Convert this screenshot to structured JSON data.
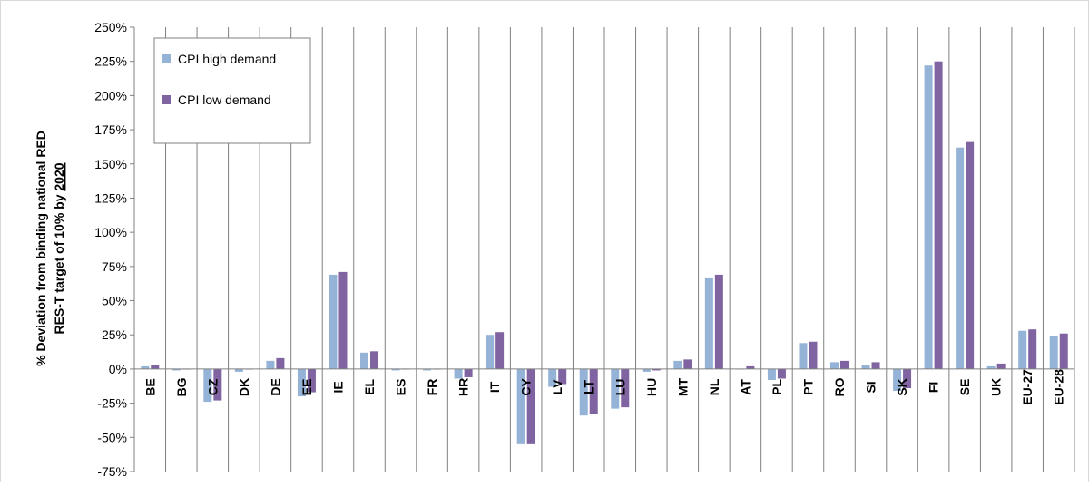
{
  "chart_data": {
    "type": "bar",
    "ylabel_line1": "% Deviation from binding national RED",
    "ylabel_line2_prefix": "RES-T target of 10% by ",
    "ylabel_line2_year": "2020",
    "ylim": [
      -75,
      250
    ],
    "yticks": [
      -75,
      -50,
      -25,
      0,
      25,
      50,
      75,
      100,
      125,
      150,
      175,
      200,
      225,
      250
    ],
    "ytick_labels": [
      "-75%",
      "-50%",
      "-25%",
      "0%",
      "25%",
      "50%",
      "75%",
      "100%",
      "125%",
      "150%",
      "175%",
      "200%",
      "225%",
      "250%"
    ],
    "grid": "vertical category separators",
    "legend_position": "top-left",
    "categories": [
      "BE",
      "BG",
      "CZ",
      "DK",
      "DE",
      "EE",
      "IE",
      "EL",
      "ES",
      "FR",
      "HR",
      "IT",
      "CY",
      "LV",
      "LT",
      "LU",
      "HU",
      "MT",
      "NL",
      "AT",
      "PL",
      "PT",
      "RO",
      "SI",
      "SK",
      "FI",
      "SE",
      "UK",
      "EU-27",
      "EU-28"
    ],
    "series": [
      {
        "name": "CPI high demand",
        "color": "#95B3D7",
        "values": [
          2,
          -1,
          -24,
          -2,
          6,
          -20,
          69,
          12,
          -1,
          -1,
          -7,
          25,
          -55,
          -13,
          -34,
          -29,
          -2,
          6,
          67,
          0,
          -8,
          19,
          5,
          3,
          -16,
          222,
          162,
          2,
          28,
          24
        ]
      },
      {
        "name": "CPI low demand",
        "color": "#8064A2",
        "values": [
          3,
          0,
          -23,
          0,
          8,
          -17,
          71,
          13,
          0,
          0,
          -6,
          27,
          -55,
          -11,
          -33,
          -28,
          -1,
          7,
          69,
          2,
          -7,
          20,
          6,
          5,
          -14,
          225,
          166,
          4,
          29,
          26
        ]
      }
    ]
  }
}
